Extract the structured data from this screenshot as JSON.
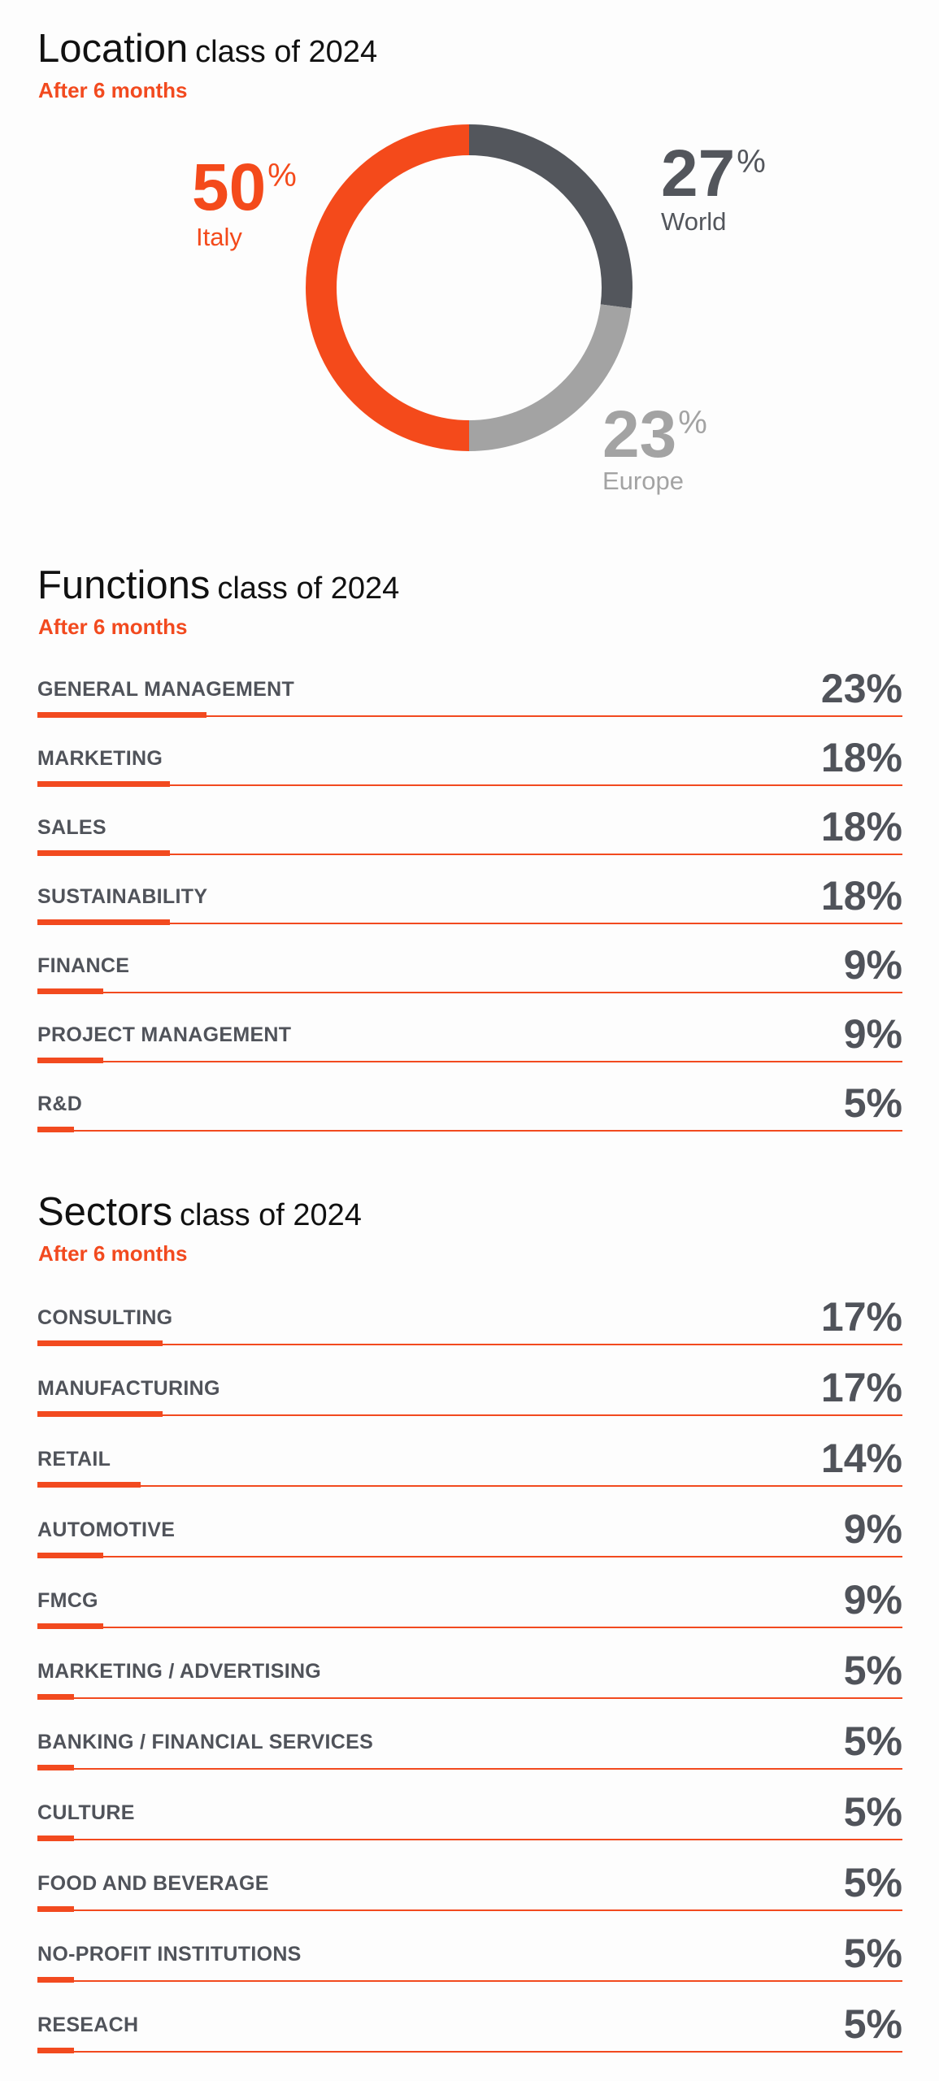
{
  "location": {
    "title": "Location",
    "subtitle_class": "class of 2024",
    "period": "After 6 months",
    "colors": {
      "italy": "#f44a1b",
      "world": "#53565c",
      "europe": "#a3a3a3"
    }
  },
  "functions": {
    "title": "Functions",
    "subtitle_class": "class of 2024",
    "period": "After 6 months",
    "rows": [
      {
        "label": "GENERAL MANAGEMENT",
        "value": "23%",
        "pct": 23
      },
      {
        "label": "MARKETING",
        "value": "18%",
        "pct": 18
      },
      {
        "label": "SALES",
        "value": "18%",
        "pct": 18
      },
      {
        "label": "SUSTAINABILITY",
        "value": "18%",
        "pct": 18
      },
      {
        "label": "FINANCE",
        "value": "9%",
        "pct": 9
      },
      {
        "label": "PROJECT MANAGEMENT",
        "value": "9%",
        "pct": 9
      },
      {
        "label": "R&D",
        "value": "5%",
        "pct": 5
      }
    ]
  },
  "sectors": {
    "title": "Sectors",
    "subtitle_class": "class of 2024",
    "period": "After 6 months",
    "rows": [
      {
        "label": "CONSULTING",
        "value": "17%",
        "pct": 17
      },
      {
        "label": "MANUFACTURING",
        "value": "17%",
        "pct": 17
      },
      {
        "label": "RETAIL",
        "value": "14%",
        "pct": 14
      },
      {
        "label": "AUTOMOTIVE",
        "value": "9%",
        "pct": 9
      },
      {
        "label": "FMCG",
        "value": "9%",
        "pct": 9
      },
      {
        "label": "MARKETING / ADVERTISING",
        "value": "5%",
        "pct": 5
      },
      {
        "label": "BANKING / FINANCIAL SERVICES",
        "value": "5%",
        "pct": 5
      },
      {
        "label": "CULTURE",
        "value": "5%",
        "pct": 5
      },
      {
        "label": "FOOD AND BEVERAGE",
        "value": "5%",
        "pct": 5
      },
      {
        "label": "NO-PROFIT INSTITUTIONS",
        "value": "5%",
        "pct": 5
      },
      {
        "label": "RESEACH",
        "value": "5%",
        "pct": 5
      }
    ]
  },
  "chart_data": [
    {
      "type": "pie",
      "title": "Location class of 2024",
      "subtitle": "After 6 months",
      "categories": [
        "World",
        "Europe",
        "Italy"
      ],
      "values": [
        27,
        23,
        50
      ],
      "unit": "%",
      "colors": [
        "#53565c",
        "#a3a3a3",
        "#f44a1b"
      ],
      "display": [
        "27",
        "23",
        "50"
      ]
    },
    {
      "type": "bar",
      "title": "Functions class of 2024",
      "subtitle": "After 6 months",
      "categories": [
        "GENERAL MANAGEMENT",
        "MARKETING",
        "SALES",
        "SUSTAINABILITY",
        "FINANCE",
        "PROJECT MANAGEMENT",
        "R&D"
      ],
      "values": [
        23,
        18,
        18,
        18,
        9,
        9,
        5
      ],
      "unit": "%",
      "ylim": [
        0,
        100
      ]
    },
    {
      "type": "bar",
      "title": "Sectors class of 2024",
      "subtitle": "After 6 months",
      "categories": [
        "CONSULTING",
        "MANUFACTURING",
        "RETAIL",
        "AUTOMOTIVE",
        "FMCG",
        "MARKETING / ADVERTISING",
        "BANKING / FINANCIAL SERVICES",
        "CULTURE",
        "FOOD AND BEVERAGE",
        "NO-PROFIT INSTITUTIONS",
        "RESEACH"
      ],
      "values": [
        17,
        17,
        14,
        9,
        9,
        5,
        5,
        5,
        5,
        5,
        5
      ],
      "unit": "%",
      "ylim": [
        0,
        100
      ]
    }
  ],
  "percent_sign": "%"
}
